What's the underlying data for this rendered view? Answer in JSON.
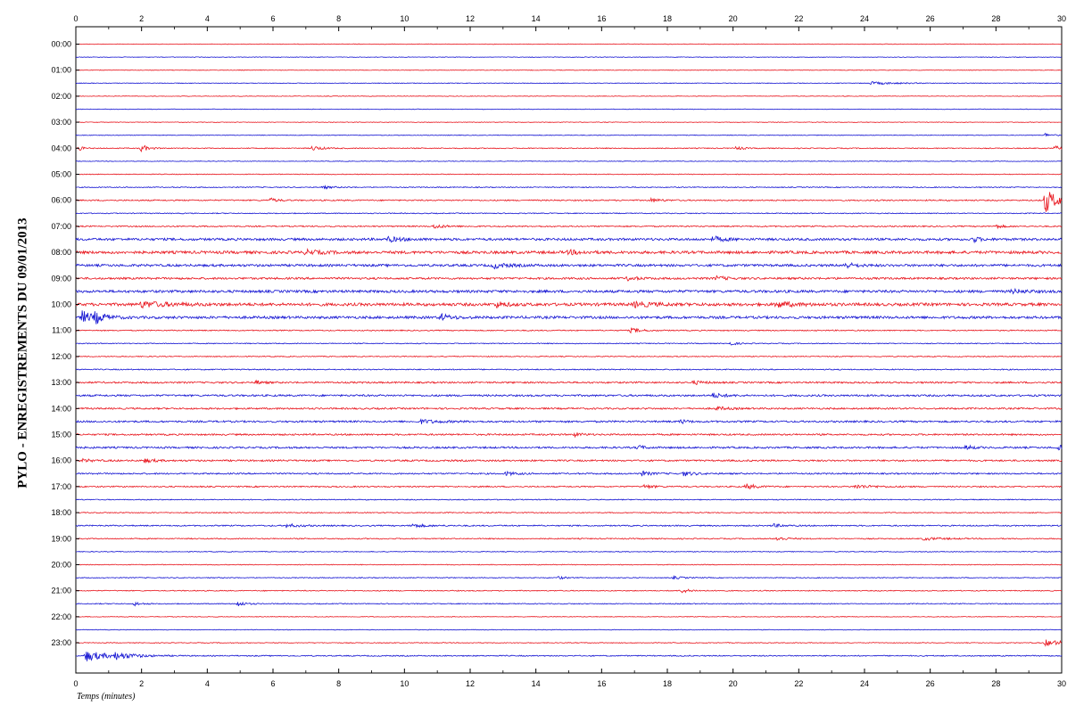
{
  "chart_data": {
    "type": "line",
    "title": "PYLO - ENREGISTREMENTS DU 09/01/2013",
    "xlabel": "Temps (minutes)",
    "xlim": [
      0,
      30
    ],
    "x_ticks": [
      0,
      2,
      4,
      6,
      8,
      10,
      12,
      14,
      16,
      18,
      20,
      22,
      24,
      26,
      28,
      30
    ],
    "trace_duration_minutes": 30,
    "hour_labels": [
      "00:00",
      "01:00",
      "02:00",
      "03:00",
      "04:00",
      "05:00",
      "06:00",
      "07:00",
      "08:00",
      "09:00",
      "10:00",
      "11:00",
      "12:00",
      "13:00",
      "14:00",
      "15:00",
      "16:00",
      "17:00",
      "18:00",
      "19:00",
      "20:00",
      "21:00",
      "22:00",
      "23:00"
    ],
    "colors": {
      "even_trace": "#e8141c",
      "odd_trace": "#1414d2",
      "axis": "#000000"
    },
    "traces": [
      {
        "start": "00:00",
        "noise": 0.3,
        "events": []
      },
      {
        "start": "00:30",
        "noise": 0.3,
        "events": []
      },
      {
        "start": "01:00",
        "noise": 0.3,
        "events": []
      },
      {
        "start": "01:30",
        "noise": 0.35,
        "events": [
          [
            24.2,
            1.5,
            0.8
          ]
        ]
      },
      {
        "start": "02:00",
        "noise": 0.3,
        "events": []
      },
      {
        "start": "02:30",
        "noise": 0.3,
        "events": []
      },
      {
        "start": "03:00",
        "noise": 0.3,
        "events": []
      },
      {
        "start": "03:30",
        "noise": 0.35,
        "events": [
          [
            29.5,
            2,
            0.2
          ]
        ]
      },
      {
        "start": "04:00",
        "noise": 0.5,
        "events": [
          [
            0.1,
            3,
            0.1
          ],
          [
            2,
            4,
            0.2
          ],
          [
            7.2,
            2.5,
            0.3
          ],
          [
            20.1,
            2,
            0.2
          ],
          [
            29.8,
            2.5,
            0.2
          ]
        ]
      },
      {
        "start": "04:30",
        "noise": 0.35,
        "events": []
      },
      {
        "start": "05:00",
        "noise": 0.4,
        "events": []
      },
      {
        "start": "05:30",
        "noise": 0.5,
        "events": [
          [
            7.5,
            1.5,
            0.3
          ]
        ]
      },
      {
        "start": "06:00",
        "noise": 0.7,
        "events": [
          [
            5.9,
            2.5,
            0.2
          ],
          [
            17.5,
            2,
            0.3
          ],
          [
            29.5,
            14,
            0.35
          ]
        ]
      },
      {
        "start": "06:30",
        "noise": 0.5,
        "events": []
      },
      {
        "start": "07:00",
        "noise": 0.7,
        "events": [
          [
            10.9,
            2.5,
            0.3
          ],
          [
            28,
            2,
            0.2
          ]
        ]
      },
      {
        "start": "07:30",
        "noise": 1.3,
        "events": [
          [
            9.5,
            2.5,
            0.4
          ],
          [
            19.4,
            3,
            0.3
          ],
          [
            27.3,
            3,
            0.2
          ]
        ]
      },
      {
        "start": "08:00",
        "noise": 1.5,
        "events": [
          [
            7,
            2.5,
            0.4
          ],
          [
            15,
            2,
            0.4
          ]
        ]
      },
      {
        "start": "08:30",
        "noise": 1.3,
        "events": [
          [
            12.7,
            3,
            0.4
          ],
          [
            23.4,
            3,
            0.3
          ]
        ]
      },
      {
        "start": "09:00",
        "noise": 1.1,
        "events": [
          [
            16.8,
            2,
            0.3
          ],
          [
            19.5,
            2,
            0.3
          ]
        ]
      },
      {
        "start": "09:30",
        "noise": 1.4,
        "events": [
          [
            28.5,
            2,
            0.4
          ]
        ]
      },
      {
        "start": "10:00",
        "noise": 1.6,
        "events": [
          [
            2,
            3,
            0.8
          ],
          [
            12.8,
            3,
            0.3
          ],
          [
            17,
            2.5,
            0.6
          ],
          [
            21.3,
            3,
            0.5
          ]
        ]
      },
      {
        "start": "10:30",
        "noise": 1.4,
        "events": [
          [
            0.2,
            7,
            0.3
          ],
          [
            0.6,
            5,
            0.3
          ],
          [
            11.1,
            3.5,
            0.3
          ]
        ]
      },
      {
        "start": "11:00",
        "noise": 0.6,
        "events": [
          [
            16.9,
            2.5,
            0.3
          ]
        ]
      },
      {
        "start": "11:30",
        "noise": 0.5,
        "events": [
          [
            19.9,
            2,
            0.2
          ]
        ]
      },
      {
        "start": "12:00",
        "noise": 0.5,
        "events": []
      },
      {
        "start": "12:30",
        "noise": 0.6,
        "events": []
      },
      {
        "start": "13:00",
        "noise": 0.9,
        "events": [
          [
            5.5,
            2,
            0.2
          ],
          [
            18.8,
            2,
            0.3
          ]
        ]
      },
      {
        "start": "13:30",
        "noise": 1.0,
        "events": [
          [
            19.4,
            2.5,
            0.3
          ]
        ]
      },
      {
        "start": "14:00",
        "noise": 0.9,
        "events": [
          [
            19.5,
            2,
            0.3
          ]
        ]
      },
      {
        "start": "14:30",
        "noise": 1.0,
        "events": [
          [
            10.5,
            2,
            0.5
          ],
          [
            18.4,
            2,
            0.2
          ]
        ]
      },
      {
        "start": "15:00",
        "noise": 0.9,
        "events": [
          [
            15.2,
            2,
            0.2
          ]
        ]
      },
      {
        "start": "15:30",
        "noise": 1.0,
        "events": [
          [
            17.1,
            2.5,
            0.2
          ],
          [
            27.1,
            2.5,
            0.2
          ],
          [
            29.9,
            3,
            0.2
          ]
        ]
      },
      {
        "start": "16:00",
        "noise": 0.9,
        "events": [
          [
            2.1,
            2,
            0.3
          ],
          [
            0.2,
            1.5,
            0.3
          ]
        ]
      },
      {
        "start": "16:30",
        "noise": 0.8,
        "events": [
          [
            13.1,
            2,
            0.3
          ],
          [
            17.2,
            2.5,
            0.3
          ],
          [
            18.5,
            2.5,
            0.3
          ]
        ]
      },
      {
        "start": "17:00",
        "noise": 0.7,
        "events": [
          [
            17.3,
            2,
            0.3
          ],
          [
            20.4,
            3,
            0.3
          ],
          [
            23.7,
            2,
            0.6
          ]
        ]
      },
      {
        "start": "17:30",
        "noise": 0.5,
        "events": []
      },
      {
        "start": "18:00",
        "noise": 0.5,
        "events": []
      },
      {
        "start": "18:30",
        "noise": 0.7,
        "events": [
          [
            6.4,
            2,
            0.4
          ],
          [
            10.2,
            2,
            0.4
          ],
          [
            21.2,
            2,
            0.3
          ]
        ]
      },
      {
        "start": "19:00",
        "noise": 0.6,
        "events": [
          [
            21.3,
            2.5,
            0.3
          ],
          [
            25.8,
            1.5,
            0.6
          ]
        ]
      },
      {
        "start": "19:30",
        "noise": 0.4,
        "events": []
      },
      {
        "start": "20:00",
        "noise": 0.4,
        "events": []
      },
      {
        "start": "20:30",
        "noise": 0.45,
        "events": [
          [
            14.7,
            1.5,
            0.2
          ],
          [
            18.2,
            1.5,
            0.3
          ]
        ]
      },
      {
        "start": "21:00",
        "noise": 0.5,
        "events": [
          [
            18.4,
            2.5,
            0.3
          ]
        ]
      },
      {
        "start": "21:30",
        "noise": 0.5,
        "events": [
          [
            1.8,
            2,
            0.2
          ],
          [
            4.9,
            3.5,
            0.2
          ]
        ]
      },
      {
        "start": "22:00",
        "noise": 0.35,
        "events": []
      },
      {
        "start": "22:30",
        "noise": 0.35,
        "events": []
      },
      {
        "start": "23:00",
        "noise": 0.4,
        "events": [
          [
            29.5,
            3.5,
            0.6
          ]
        ]
      },
      {
        "start": "23:30",
        "noise": 0.6,
        "events": [
          [
            0.3,
            6,
            0.6
          ],
          [
            1.2,
            3,
            0.6
          ]
        ]
      }
    ]
  }
}
